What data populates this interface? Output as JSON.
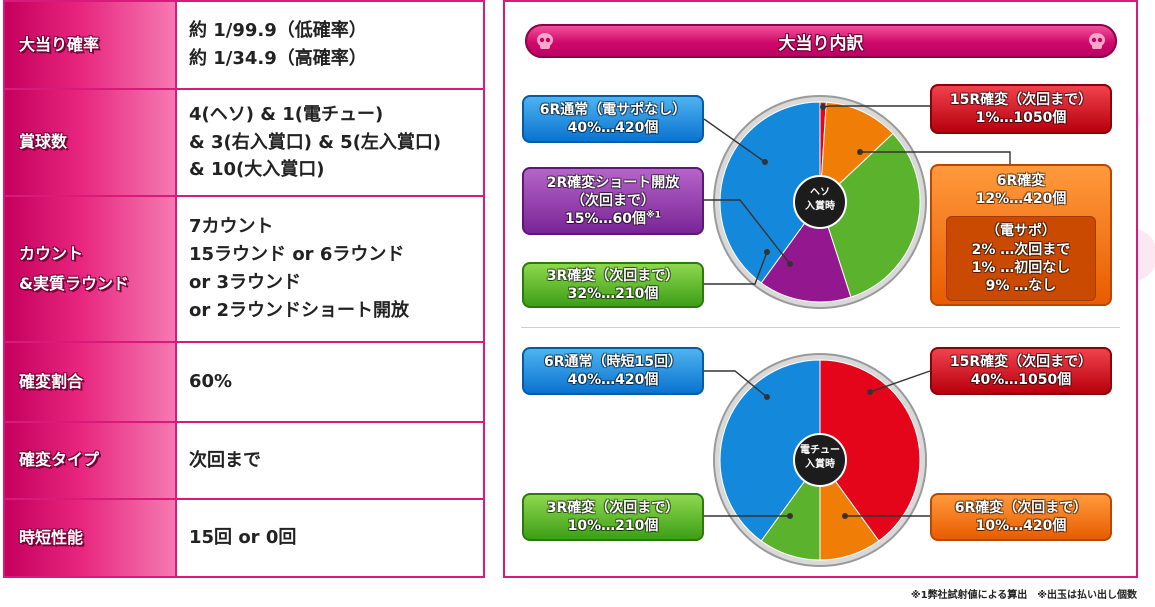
{
  "spec_table": {
    "rows": [
      {
        "label": "大当り確率",
        "value": "約 1/99.9（低確率）\n約 1/34.9（高確率）"
      },
      {
        "label": "賞球数",
        "value": "4(ヘソ) & 1(電チュー)\n& 3(右入賞口) & 5(左入賞口)\n& 10(大入賞口)"
      },
      {
        "label": "カウント\n&実質ラウンド",
        "value": "7カウント\n15ラウンド or 6ラウンド\nor 3ラウンド\nor 2ラウンドショート開放"
      },
      {
        "label": "確変割合",
        "value": "60%"
      },
      {
        "label": "確変タイプ",
        "value": "次回まで"
      },
      {
        "label": "時短性能",
        "value": "15回 or 0回"
      }
    ]
  },
  "panel": {
    "title": "大当り内訳",
    "heso": {
      "center_label": "ヘソ\n入賞時",
      "labels": {
        "normal6": {
          "title": "6R通常（電サポなし）",
          "value": "40%…420個"
        },
        "short2": {
          "title": "2R確変ショート開放\n（次回まで）",
          "value": "15%…60個",
          "note": "※1"
        },
        "r3": {
          "title": "3R確変（次回まで）",
          "value": "32%…210個"
        },
        "r15": {
          "title": "15R確変（次回まで）",
          "value": "1%…1050個"
        },
        "r6": {
          "title": "6R確変",
          "value": "12%…420個",
          "sub_title": "（電サポ）",
          "sub_lines": [
            "2% …次回まで",
            "1% …初回なし",
            "9% …なし"
          ]
        }
      }
    },
    "denchu": {
      "center_label": "電チュー\n入賞時",
      "labels": {
        "normal6": {
          "title": "6R通常（時短15回）",
          "value": "40%…420個"
        },
        "r3": {
          "title": "3R確変（次回まで）",
          "value": "10%…210個"
        },
        "r15": {
          "title": "15R確変（次回まで）",
          "value": "40%…1050個"
        },
        "r6": {
          "title": "6R確変（次回まで）",
          "value": "10%…420個"
        }
      }
    }
  },
  "chart_data": [
    {
      "type": "pie",
      "title": "ヘソ入賞時",
      "slices": [
        {
          "label": "15R確変（次回まで）",
          "value": 1,
          "color": "#e4051b"
        },
        {
          "label": "6R確変",
          "value": 12,
          "color": "#f07d05"
        },
        {
          "label": "3R確変（次回まで）",
          "value": 32,
          "color": "#5bb22c"
        },
        {
          "label": "2R確変ショート開放（次回まで）",
          "value": 15,
          "color": "#93178f"
        },
        {
          "label": "6R通常（電サポなし）",
          "value": 40,
          "color": "#1489db"
        }
      ]
    },
    {
      "type": "pie",
      "title": "電チュー入賞時",
      "slices": [
        {
          "label": "15R確変（次回まで）",
          "value": 40,
          "color": "#e4051b"
        },
        {
          "label": "6R確変（次回まで）",
          "value": 10,
          "color": "#f07d05"
        },
        {
          "label": "3R確変（次回まで）",
          "value": 10,
          "color": "#5bb22c"
        },
        {
          "label": "6R通常（時短15回）",
          "value": 40,
          "color": "#1489db"
        }
      ]
    }
  ],
  "footnote": "※1弊社試射値による算出　※出玉は払い出し個数"
}
